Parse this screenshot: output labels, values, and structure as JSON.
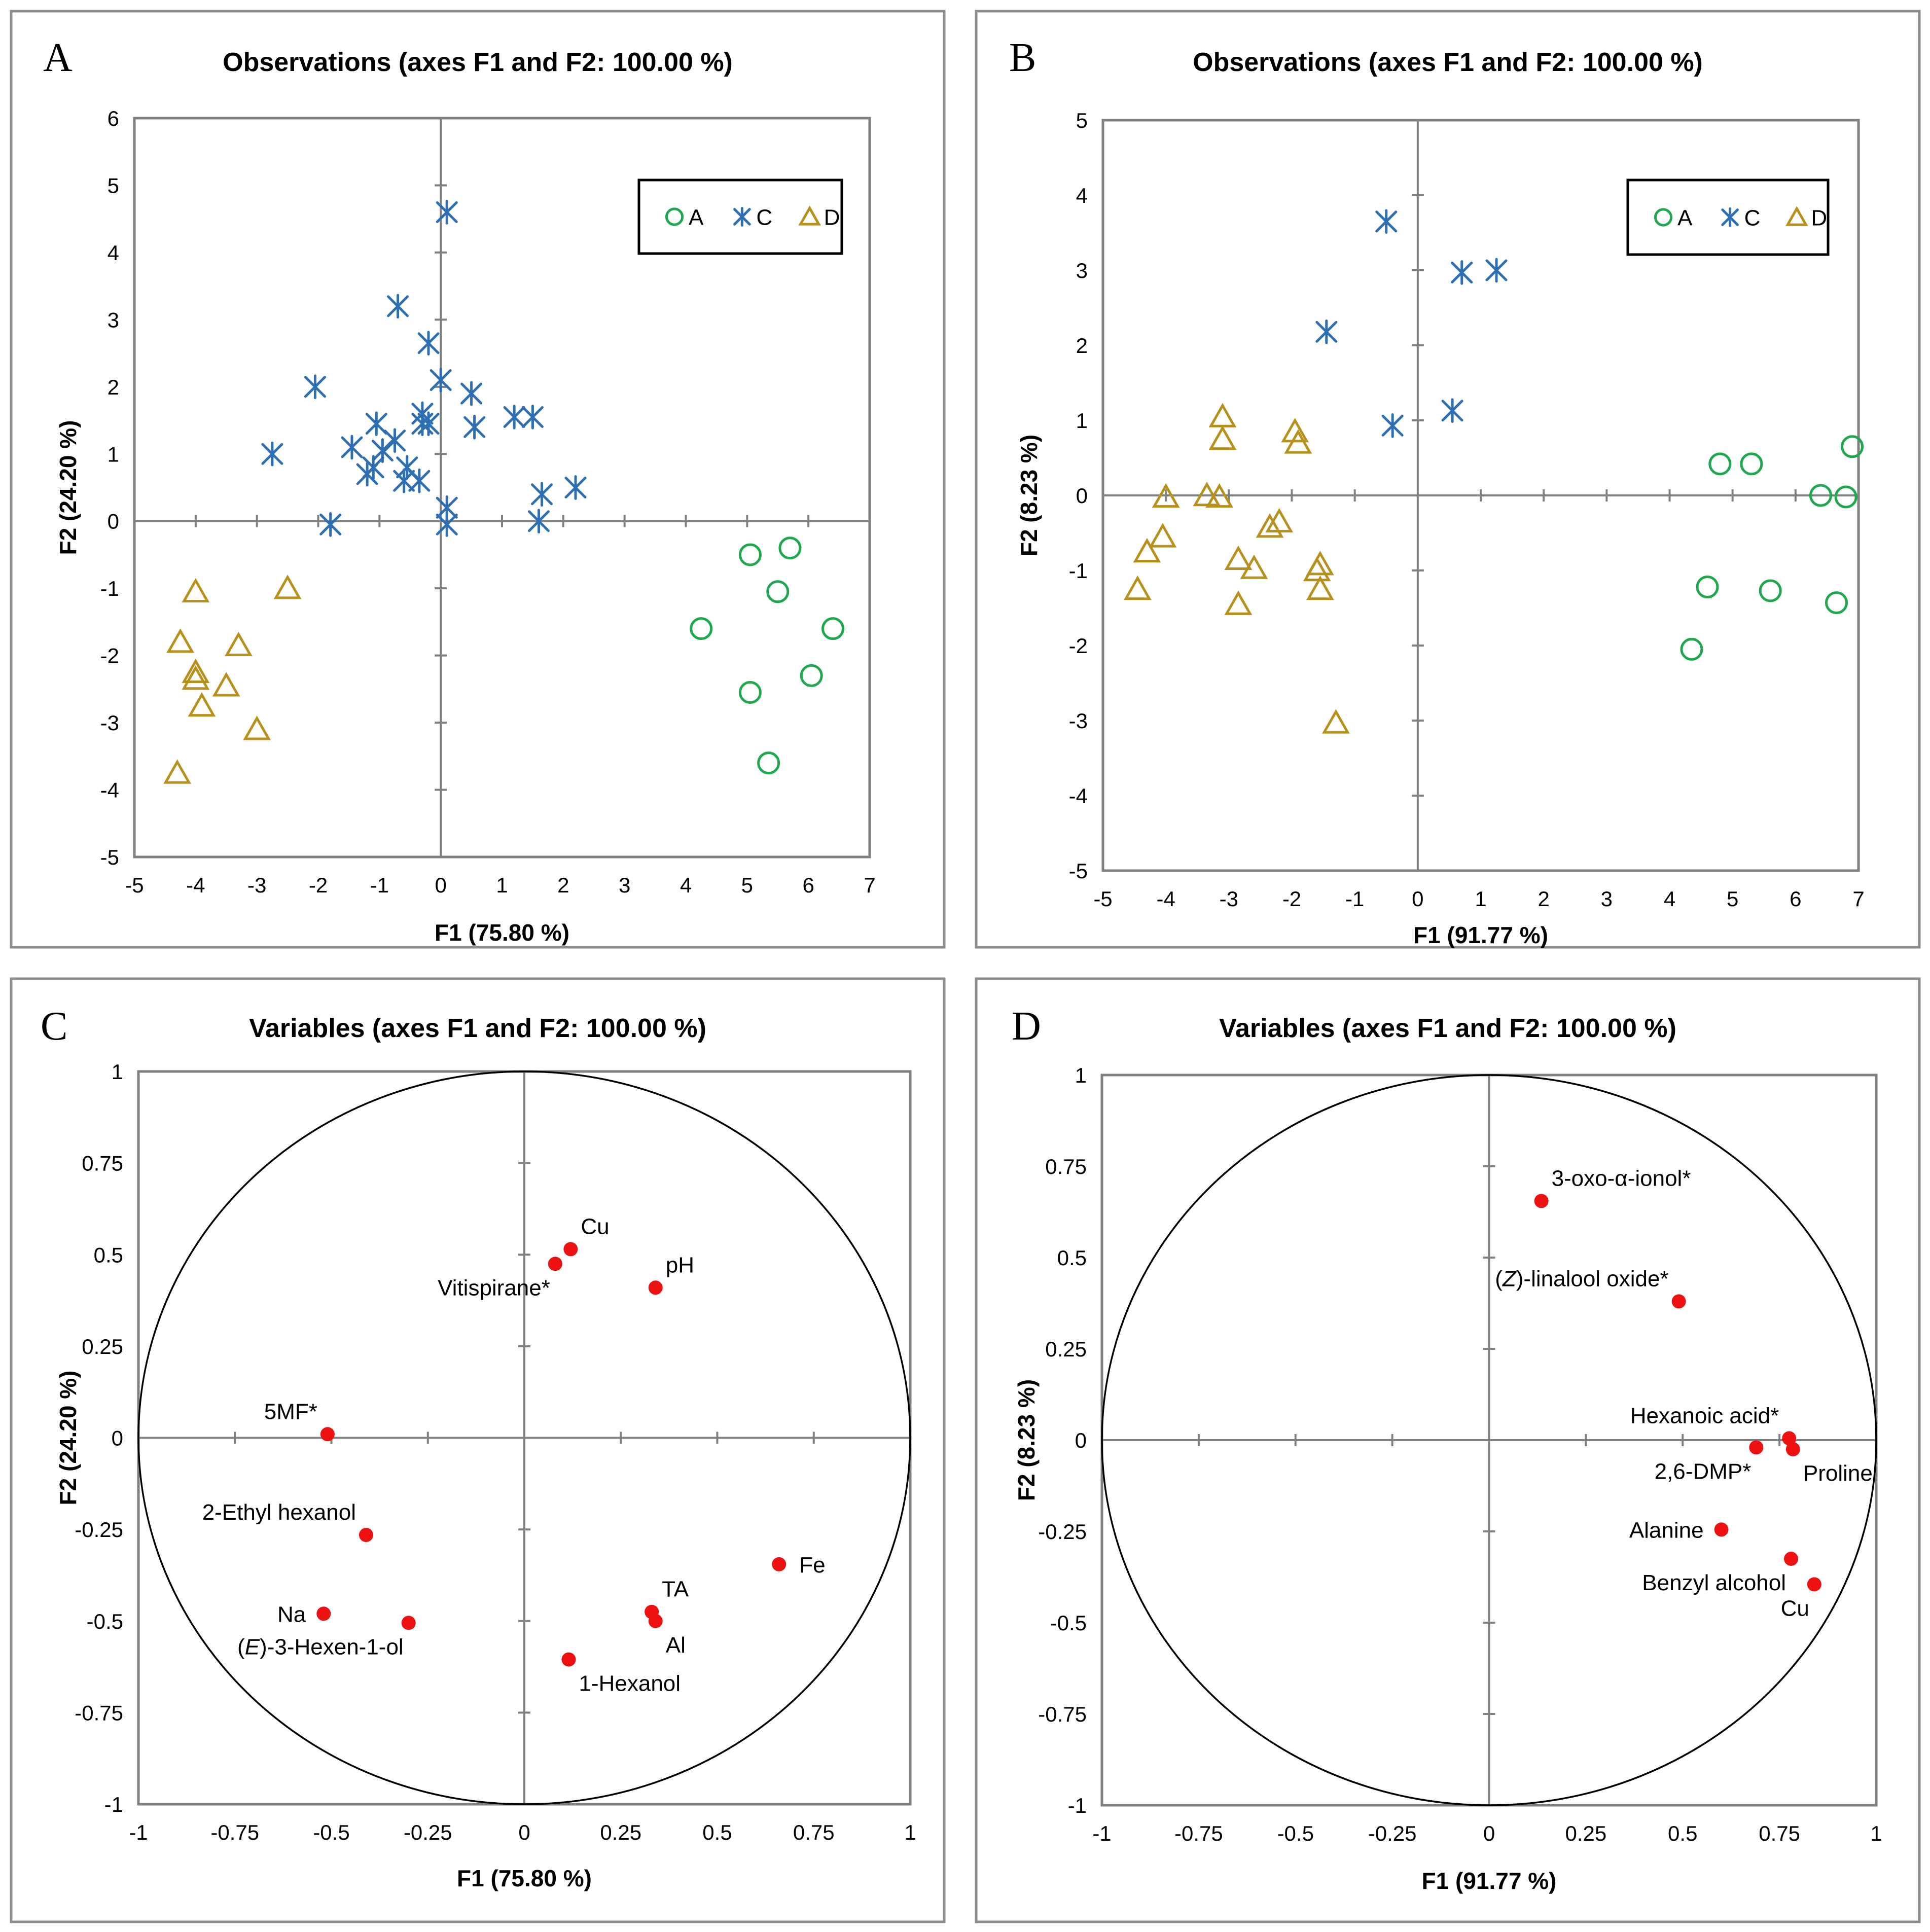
{
  "colors": {
    "A": "#1fa84f",
    "C": "#2e6fb3",
    "D": "#b8901c",
    "variable": "#ee1111"
  },
  "legend_icons": {
    "A": "circle-icon",
    "C": "asterisk-icon",
    "D": "triangle-icon"
  },
  "chart_data": [
    {
      "panel": "A",
      "type": "scatter",
      "title": "Observations (axes F1 and F2: 100.00 %)",
      "xlabel": "F1 (75.80 %)",
      "ylabel": "F2 (24.20 %)",
      "xlim": [
        -5,
        7
      ],
      "ylim": [
        -5,
        6
      ],
      "xticks": [
        -5,
        -4,
        -3,
        -2,
        -1,
        0,
        1,
        2,
        3,
        4,
        5,
        6,
        7
      ],
      "yticks": [
        -5,
        -4,
        -3,
        -2,
        -1,
        0,
        1,
        2,
        3,
        4,
        5,
        6
      ],
      "legend": {
        "position": "top-right",
        "entries": [
          "A",
          "C",
          "D"
        ]
      },
      "series": [
        {
          "name": "A",
          "marker": "circle",
          "points": [
            [
              4.25,
              -1.6
            ],
            [
              5.05,
              -0.5
            ],
            [
              5.7,
              -0.4
            ],
            [
              5.5,
              -1.05
            ],
            [
              6.4,
              -1.6
            ],
            [
              6.05,
              -2.3
            ],
            [
              5.05,
              -2.55
            ],
            [
              5.35,
              -3.6
            ]
          ]
        },
        {
          "name": "C",
          "marker": "asterisk",
          "points": [
            [
              0.1,
              4.6
            ],
            [
              -0.7,
              3.2
            ],
            [
              -0.2,
              2.65
            ],
            [
              -2.05,
              2.0
            ],
            [
              0.0,
              2.1
            ],
            [
              0.5,
              1.9
            ],
            [
              -1.05,
              1.45
            ],
            [
              -0.3,
              1.6
            ],
            [
              -0.3,
              1.45
            ],
            [
              -0.2,
              1.45
            ],
            [
              0.55,
              1.4
            ],
            [
              1.2,
              1.55
            ],
            [
              1.5,
              1.55
            ],
            [
              -2.75,
              1.0
            ],
            [
              -1.45,
              1.1
            ],
            [
              -0.95,
              1.05
            ],
            [
              -0.75,
              1.2
            ],
            [
              -1.2,
              0.7
            ],
            [
              -1.1,
              0.8
            ],
            [
              -0.55,
              0.8
            ],
            [
              -0.6,
              0.6
            ],
            [
              -0.35,
              0.6
            ],
            [
              1.65,
              0.4
            ],
            [
              2.2,
              0.5
            ],
            [
              -1.8,
              -0.05
            ],
            [
              0.1,
              0.2
            ],
            [
              0.1,
              -0.05
            ],
            [
              1.6,
              0.0
            ]
          ]
        },
        {
          "name": "D",
          "marker": "triangle",
          "points": [
            [
              -4.0,
              -1.05
            ],
            [
              -2.5,
              -1.0
            ],
            [
              -4.25,
              -1.8
            ],
            [
              -3.3,
              -1.85
            ],
            [
              -4.0,
              -2.25
            ],
            [
              -4.0,
              -2.35
            ],
            [
              -3.5,
              -2.45
            ],
            [
              -3.9,
              -2.75
            ],
            [
              -3.0,
              -3.1
            ],
            [
              -4.3,
              -3.75
            ]
          ]
        }
      ]
    },
    {
      "panel": "B",
      "type": "scatter",
      "title": "Observations (axes F1 and F2: 100.00 %)",
      "xlabel": "F1 (91.77 %)",
      "ylabel": "F2 (8.23 %)",
      "xlim": [
        -5,
        7
      ],
      "ylim": [
        -5,
        5
      ],
      "xticks": [
        -5,
        -4,
        -3,
        -2,
        -1,
        0,
        1,
        2,
        3,
        4,
        5,
        6,
        7
      ],
      "yticks": [
        -5,
        -4,
        -3,
        -2,
        -1,
        0,
        1,
        2,
        3,
        4,
        5
      ],
      "legend": {
        "position": "top-right",
        "entries": [
          "A",
          "C",
          "D"
        ]
      },
      "series": [
        {
          "name": "A",
          "marker": "circle",
          "points": [
            [
              4.8,
              0.42
            ],
            [
              5.3,
              0.42
            ],
            [
              6.9,
              0.65
            ],
            [
              6.4,
              0.0
            ],
            [
              6.8,
              -0.02
            ],
            [
              4.6,
              -1.22
            ],
            [
              5.6,
              -1.27
            ],
            [
              6.65,
              -1.43
            ],
            [
              4.35,
              -2.05
            ]
          ]
        },
        {
          "name": "C",
          "marker": "asterisk",
          "points": [
            [
              -0.5,
              3.65
            ],
            [
              0.7,
              2.97
            ],
            [
              1.25,
              3.0
            ],
            [
              -1.45,
              2.18
            ],
            [
              -0.4,
              0.93
            ],
            [
              0.55,
              1.13
            ]
          ]
        },
        {
          "name": "D",
          "marker": "triangle",
          "points": [
            [
              -3.1,
              1.05
            ],
            [
              -3.1,
              0.75
            ],
            [
              -1.95,
              0.85
            ],
            [
              -1.9,
              0.7
            ],
            [
              -4.0,
              -0.02
            ],
            [
              -3.35,
              0.0
            ],
            [
              -3.15,
              -0.02
            ],
            [
              -2.35,
              -0.42
            ],
            [
              -2.2,
              -0.35
            ],
            [
              -4.05,
              -0.55
            ],
            [
              -4.3,
              -0.75
            ],
            [
              -2.85,
              -0.85
            ],
            [
              -2.6,
              -0.97
            ],
            [
              -1.55,
              -0.92
            ],
            [
              -1.6,
              -1.0
            ],
            [
              -1.55,
              -1.25
            ],
            [
              -4.45,
              -1.25
            ],
            [
              -2.85,
              -1.45
            ],
            [
              -1.3,
              -3.03
            ]
          ]
        }
      ]
    },
    {
      "panel": "C",
      "type": "scatter",
      "title": "Variables (axes F1 and F2: 100.00 %)",
      "xlabel": "F1 (75.80 %)",
      "ylabel": "F2 (24.20 %)",
      "xlim": [
        -1,
        1
      ],
      "ylim": [
        -1,
        1
      ],
      "xticks": [
        "-1",
        "-0.75",
        "-0.5",
        "-0.25",
        "0",
        "0.25",
        "0.5",
        "0.75",
        "1"
      ],
      "yticks": [
        "-1",
        "-0.75",
        "-0.5",
        "-0.25",
        "0",
        "0.25",
        "0.5",
        "0.75",
        "1"
      ],
      "correlation_circle": true,
      "variables": [
        {
          "label": "Cu",
          "x": 0.12,
          "y": 0.515,
          "label_pos": "above-right"
        },
        {
          "label": "Vitispirane*",
          "x": 0.08,
          "y": 0.475,
          "label_pos": "below-left"
        },
        {
          "label": "pH",
          "x": 0.34,
          "y": 0.41,
          "label_pos": "above-right"
        },
        {
          "label": "5MF*",
          "x": -0.51,
          "y": 0.01,
          "label_pos": "above-left"
        },
        {
          "label": "2-Ethyl hexanol",
          "x": -0.41,
          "y": -0.265,
          "label_pos": "above-left"
        },
        {
          "label": "Fe",
          "x": 0.66,
          "y": -0.345,
          "label_pos": "right"
        },
        {
          "label": "TA",
          "x": 0.33,
          "y": -0.475,
          "label_pos": "above-right"
        },
        {
          "label": "Al",
          "x": 0.34,
          "y": -0.5,
          "label_pos": "below-right"
        },
        {
          "label": "Na",
          "x": -0.52,
          "y": -0.48,
          "label_pos": "left"
        },
        {
          "label": "(E)-3-Hexen-1-ol",
          "x": -0.3,
          "y": -0.505,
          "label_pos": "below-left"
        },
        {
          "label": "1-Hexanol",
          "x": 0.115,
          "y": -0.605,
          "label_pos": "below-right"
        }
      ]
    },
    {
      "panel": "D",
      "type": "scatter",
      "title": "Variables (axes F1 and F2: 100.00 %)",
      "xlabel": "F1 (91.77 %)",
      "ylabel": "F2 (8.23 %)",
      "xlim": [
        -1,
        1
      ],
      "ylim": [
        -1,
        1
      ],
      "xticks": [
        "-1",
        "-0.75",
        "-0.5",
        "-0.25",
        "0",
        "0.25",
        "0.5",
        "0.75",
        "1"
      ],
      "yticks": [
        "-1",
        "-0.75",
        "-0.5",
        "-0.25",
        "0",
        "0.25",
        "0.5",
        "0.75",
        "1"
      ],
      "correlation_circle": true,
      "variables": [
        {
          "label": "3-oxo-α-ionol*",
          "x": 0.135,
          "y": 0.655,
          "label_pos": "above-right"
        },
        {
          "label": "(Z)-linalool oxide*",
          "x": 0.49,
          "y": 0.38,
          "label_pos": "above-left"
        },
        {
          "label": "Hexanoic acid*",
          "x": 0.775,
          "y": 0.005,
          "label_pos": "above-left"
        },
        {
          "label": "2,6-DMP*",
          "x": 0.69,
          "y": -0.02,
          "label_pos": "below-left"
        },
        {
          "label": "Proline",
          "x": 0.785,
          "y": -0.025,
          "label_pos": "below-right"
        },
        {
          "label": "Alanine",
          "x": 0.6,
          "y": -0.245,
          "label_pos": "left"
        },
        {
          "label": "Benzyl alcohol",
          "x": 0.78,
          "y": -0.325,
          "label_pos": "below-left"
        },
        {
          "label": "Cu",
          "x": 0.84,
          "y": -0.395,
          "label_pos": "below-left"
        }
      ]
    }
  ]
}
